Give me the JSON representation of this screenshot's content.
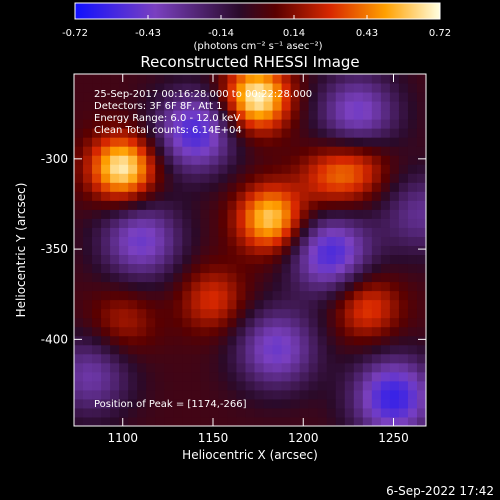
{
  "chart_data": {
    "type": "heatmap",
    "title": "Reconstructed RHESSI Image",
    "xlabel": "Heliocentric X (arcsec)",
    "ylabel": "Heliocentric Y (arcsec)",
    "xlim": [
      1073,
      1268
    ],
    "ylim": [
      -448,
      -253
    ],
    "x_ticks": [
      1100,
      1150,
      1200,
      1250
    ],
    "y_ticks": [
      -300,
      -350,
      -400
    ],
    "colorbar": {
      "ticks": [
        "-0.72",
        "-0.43",
        "-0.14",
        "0.14",
        "0.43",
        "0.72"
      ],
      "range": [
        -0.72,
        0.72
      ],
      "unit_label": "(photons cm⁻² s⁻¹ asec⁻²)"
    },
    "annotations": [
      "25-Sep-2017 00:16:28.000 to 00:22:28.000",
      "Detectors: 3F 6F 8F, Att 1",
      "Energy Range: 6.0 - 12.0 keV",
      "Clean     Total counts: 6.14E+04"
    ],
    "peak_label": "Position of Peak = [1174,-266]",
    "sources": [
      {
        "x": 1100,
        "y": -305,
        "value": 0.7
      },
      {
        "x": 1174,
        "y": -266,
        "value": 0.72
      },
      {
        "x": 1182,
        "y": -333,
        "value": 0.62
      },
      {
        "x": 1215,
        "y": -310,
        "value": 0.3
      },
      {
        "x": 1232,
        "y": -304,
        "value": 0.28
      },
      {
        "x": 1150,
        "y": -378,
        "value": 0.3
      },
      {
        "x": 1100,
        "y": -390,
        "value": 0.22
      },
      {
        "x": 1235,
        "y": -382,
        "value": 0.35
      }
    ]
  },
  "footer_date": "6-Sep-2022 17:42"
}
